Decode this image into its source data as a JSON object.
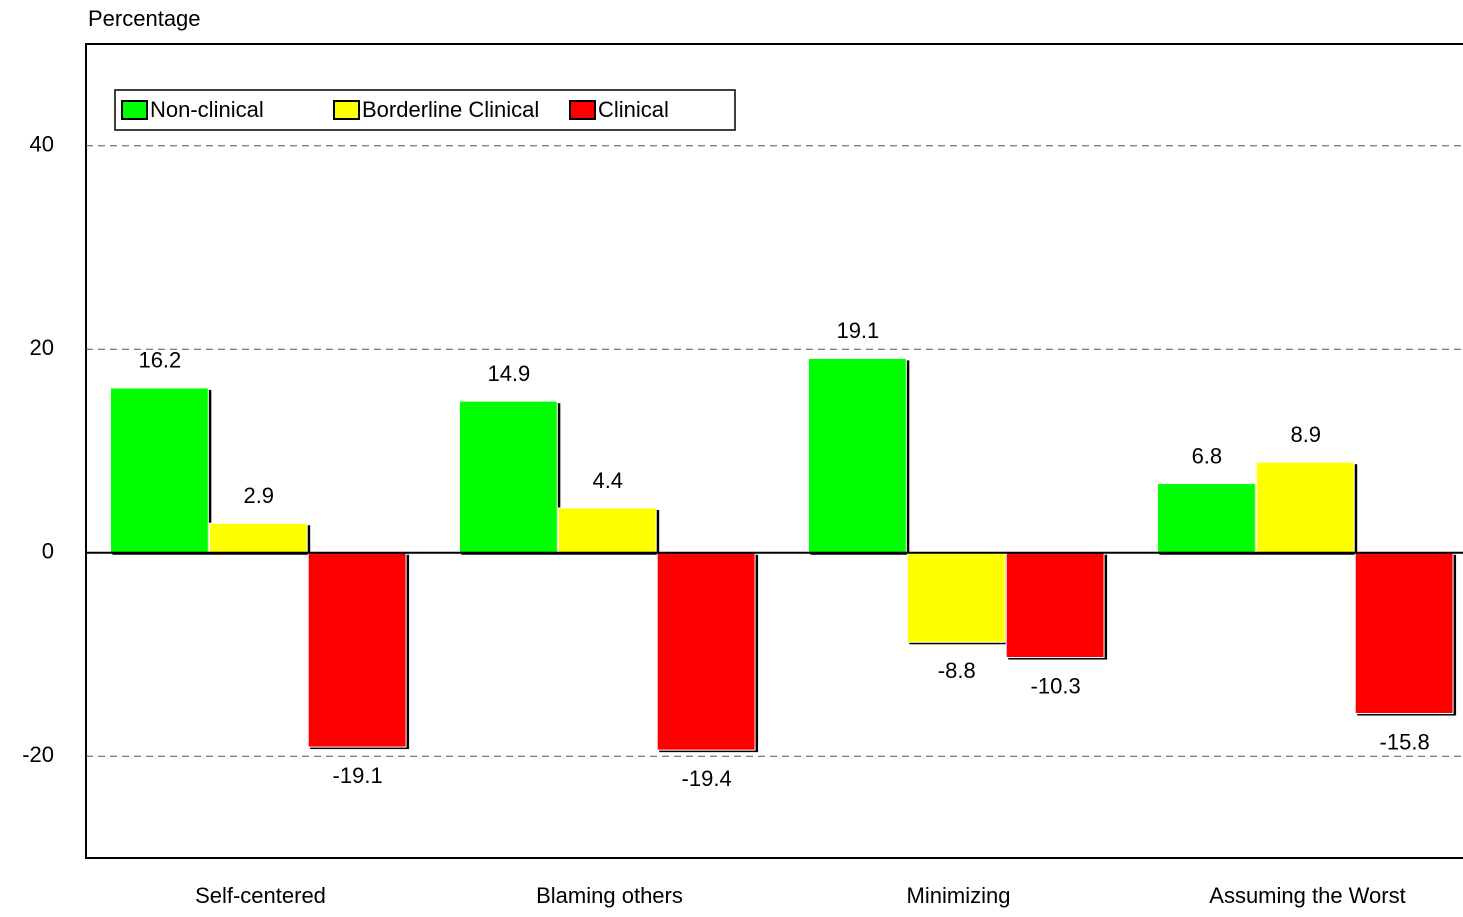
{
  "chart_data": {
    "type": "bar",
    "y_label": "Percentage",
    "categories": [
      "Self-centered",
      "Blaming others",
      "Minimizing",
      "Assuming the Worst"
    ],
    "series": [
      {
        "name": "Non-clinical",
        "color": "#00ff00",
        "values": [
          16.2,
          14.9,
          19.1,
          6.8
        ]
      },
      {
        "name": "Borderline Clinical",
        "color": "#ffff00",
        "values": [
          2.9,
          4.4,
          -8.8,
          8.9
        ]
      },
      {
        "name": "Clinical",
        "color": "#ff0000",
        "values": [
          -19.1,
          -19.4,
          -10.3,
          -15.8
        ]
      }
    ],
    "ylim": [
      -30,
      50
    ],
    "yticks": [
      -20,
      0,
      20,
      40
    ],
    "grid": true,
    "legend": "top-left"
  }
}
